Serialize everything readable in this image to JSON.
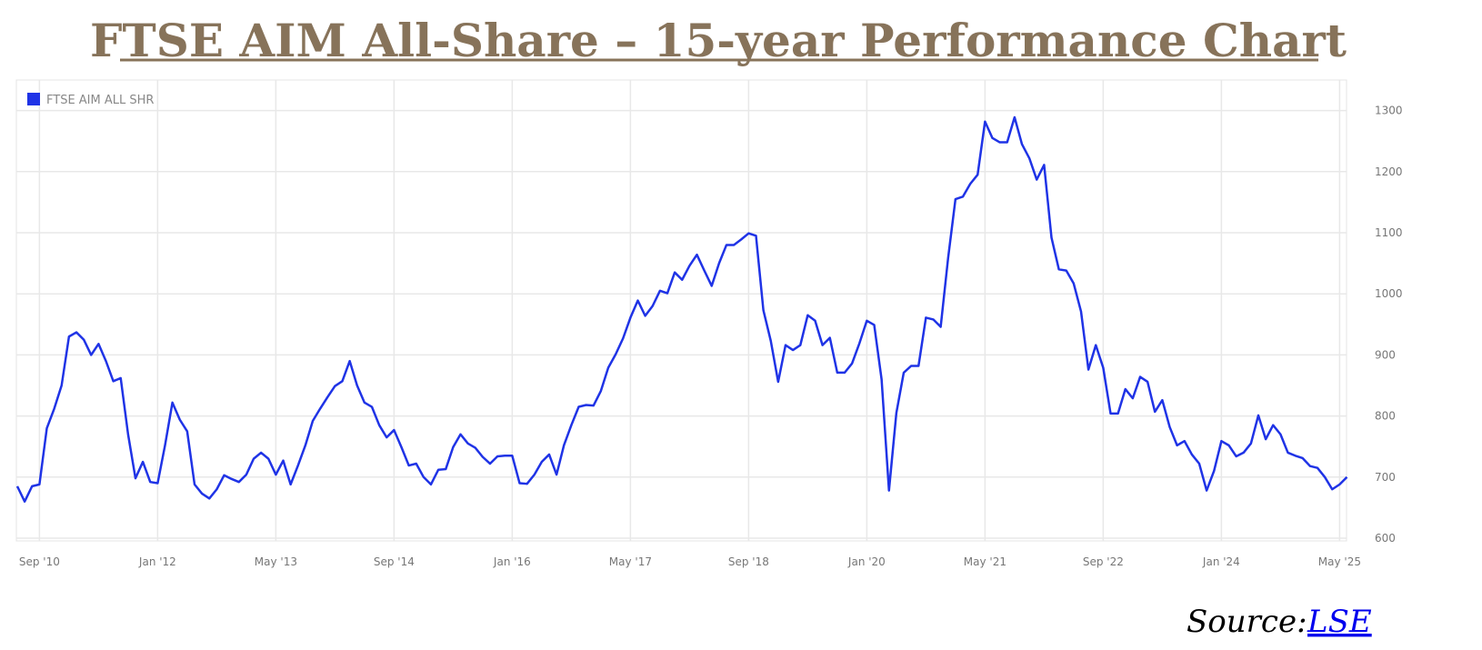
{
  "title": "FTSE AIM All-Share – 15-year Performance Chart",
  "chart_data": {
    "type": "line",
    "categories": [
      null,
      null,
      null,
      "Sep '10",
      null,
      null,
      null,
      null,
      null,
      null,
      null,
      null,
      null,
      null,
      null,
      null,
      null,
      null,
      null,
      "Jan '12",
      null,
      null,
      null,
      null,
      null,
      null,
      null,
      null,
      null,
      null,
      null,
      null,
      null,
      null,
      null,
      "May '13",
      null,
      null,
      null,
      null,
      null,
      null,
      null,
      null,
      null,
      null,
      null,
      null,
      null,
      null,
      null,
      "Sep '14",
      null,
      null,
      null,
      null,
      null,
      null,
      null,
      null,
      null,
      null,
      null,
      null,
      null,
      null,
      null,
      "Jan '16",
      null,
      null,
      null,
      null,
      null,
      null,
      null,
      null,
      null,
      null,
      null,
      null,
      null,
      null,
      null,
      "May '17",
      null,
      null,
      null,
      null,
      null,
      null,
      null,
      null,
      null,
      null,
      null,
      null,
      null,
      null,
      null,
      "Sep '18",
      null,
      null,
      null,
      null,
      null,
      null,
      null,
      null,
      null,
      null,
      null,
      null,
      null,
      null,
      null,
      "Jan '20",
      null,
      null,
      null,
      null,
      null,
      null,
      null,
      null,
      null,
      null,
      null,
      null,
      null,
      null,
      null,
      "May '21",
      null,
      null,
      null,
      null,
      null,
      null,
      null,
      null,
      null,
      null,
      null,
      null,
      null,
      null,
      null,
      "Sep '22",
      null,
      null,
      null,
      null,
      null,
      null,
      null,
      null,
      null,
      null,
      null,
      null,
      null,
      null,
      null,
      "Jan '24",
      null,
      null,
      null,
      null,
      null,
      null,
      null,
      null,
      null,
      null,
      null,
      null,
      null,
      null,
      null,
      "May '25",
      null
    ],
    "series": [
      {
        "name": "FTSE AIM ALL SHR",
        "color": "#1f33e6",
        "values": [
          685,
          660,
          685,
          688,
          780,
          812,
          850,
          930,
          937,
          925,
          900,
          918,
          890,
          857,
          862,
          770,
          698,
          725,
          692,
          690,
          752,
          822,
          794,
          775,
          688,
          673,
          665,
          680,
          703,
          697,
          692,
          704,
          730,
          740,
          730,
          704,
          727,
          688,
          719,
          752,
          792,
          812,
          831,
          849,
          857,
          890,
          850,
          822,
          815,
          785,
          765,
          777,
          749,
          719,
          722,
          700,
          688,
          712,
          713,
          749,
          770,
          755,
          748,
          733,
          722,
          734,
          735,
          735,
          690,
          689,
          704,
          725,
          737,
          704,
          752,
          785,
          815,
          818,
          817,
          841,
          879,
          901,
          927,
          961,
          989,
          964,
          980,
          1005,
          1001,
          1035,
          1023,
          1046,
          1064,
          1038,
          1013,
          1050,
          1080,
          1080,
          1089,
          1099,
          1095,
          973,
          923,
          856,
          916,
          908,
          916,
          965,
          956,
          916,
          928,
          871,
          871,
          886,
          919,
          956,
          949,
          860,
          678,
          805,
          871,
          882,
          882,
          961,
          958,
          946,
          1058,
          1155,
          1159,
          1180,
          1195,
          1282,
          1255,
          1248,
          1248,
          1289,
          1245,
          1222,
          1187,
          1211,
          1092,
          1040,
          1038,
          1017,
          971,
          876,
          916,
          879,
          804,
          804,
          844,
          829,
          864,
          856,
          807,
          826,
          782,
          752,
          759,
          737,
          722,
          678,
          710,
          759,
          752,
          734,
          740,
          755,
          801,
          762,
          785,
          770,
          740,
          735,
          731,
          718,
          715,
          700,
          680,
          688,
          700
        ]
      }
    ],
    "ylim": [
      600,
      1350
    ],
    "yticks": [
      600,
      700,
      800,
      900,
      1000,
      1100,
      1200,
      1300
    ],
    "grid": true,
    "legend": "top-left"
  },
  "source": {
    "text": "Source:",
    "link": "LSE"
  }
}
